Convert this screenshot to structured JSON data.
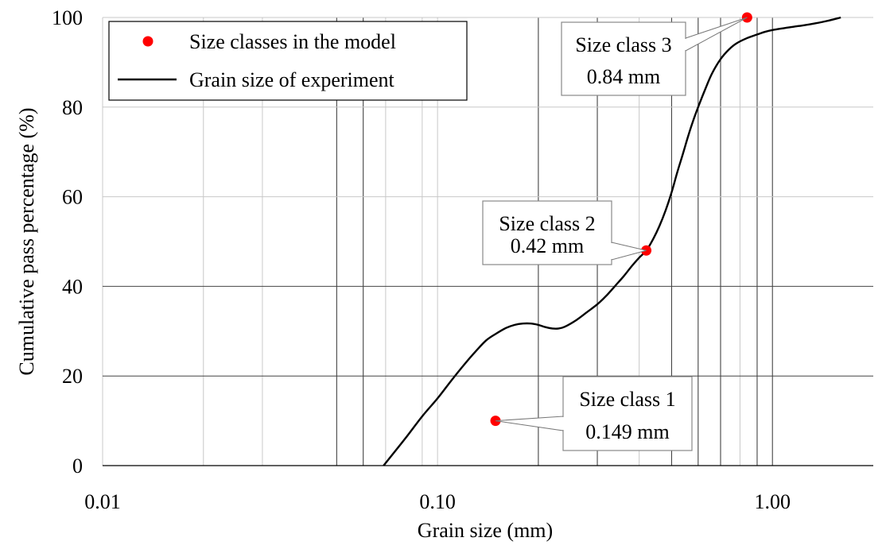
{
  "chart_data": {
    "type": "line",
    "xlabel": "Grain size (mm)",
    "ylabel": "Cumulative pass percentage (%)",
    "xscale": "log",
    "xlim": [
      0.01,
      2.0
    ],
    "ylim": [
      0,
      100
    ],
    "x_ticks": [
      0.01,
      0.1,
      1.0
    ],
    "x_tick_labels": [
      "0.01",
      "0.10",
      "1.00"
    ],
    "y_ticks": [
      0,
      20,
      40,
      60,
      80,
      100
    ],
    "y_tick_labels": [
      "0",
      "20",
      "40",
      "60",
      "80",
      "100"
    ],
    "grid": true,
    "legend_position": "top-left",
    "series": [
      {
        "name": "Size classes in the model",
        "kind": "scatter",
        "color": "#ff0000",
        "x": [
          0.149,
          0.42,
          0.84
        ],
        "y": [
          10,
          48,
          100
        ]
      },
      {
        "name": "Grain size of experiment",
        "kind": "line",
        "color": "#000000",
        "x": [
          0.069,
          0.08,
          0.09,
          0.1,
          0.11,
          0.12,
          0.13,
          0.14,
          0.15,
          0.16,
          0.17,
          0.18,
          0.19,
          0.2,
          0.21,
          0.22,
          0.23,
          0.24,
          0.26,
          0.28,
          0.3,
          0.32,
          0.34,
          0.36,
          0.38,
          0.4,
          0.42,
          0.44,
          0.46,
          0.48,
          0.5,
          0.52,
          0.54,
          0.56,
          0.58,
          0.6,
          0.63,
          0.66,
          0.7,
          0.74,
          0.78,
          0.84,
          0.9,
          0.95,
          1.0,
          1.1,
          1.2,
          1.3,
          1.45,
          1.6
        ],
        "y": [
          0,
          6,
          11,
          15,
          19,
          22.5,
          25.5,
          28,
          29.5,
          30.7,
          31.4,
          31.7,
          31.7,
          31.4,
          30.9,
          30.6,
          30.6,
          31,
          32.5,
          34.3,
          36,
          38,
          40.2,
          42.3,
          44.5,
          46.4,
          48,
          50.5,
          53.5,
          57,
          61,
          65.5,
          69.5,
          73.5,
          77,
          80,
          84,
          87.5,
          90.7,
          92.8,
          94.2,
          95.4,
          96.2,
          96.8,
          97.2,
          97.7,
          98.1,
          98.5,
          99.2,
          100
        ]
      }
    ],
    "annotations": [
      {
        "name": "size-class-1",
        "line1": "Size class 1",
        "line2": "0.149 mm",
        "x": 0.149,
        "y": 10
      },
      {
        "name": "size-class-2",
        "line1": "Size class 2",
        "line2": "0.42 mm",
        "x": 0.42,
        "y": 48
      },
      {
        "name": "size-class-3",
        "line1": "Size class 3",
        "line2": "0.84 mm",
        "x": 0.84,
        "y": 100
      }
    ],
    "extra_gridlines_x": [
      0.02,
      0.03,
      0.05,
      0.06,
      0.07,
      0.09,
      0.2,
      0.3,
      0.4,
      0.5,
      0.6,
      0.7,
      0.8,
      0.9
    ]
  }
}
